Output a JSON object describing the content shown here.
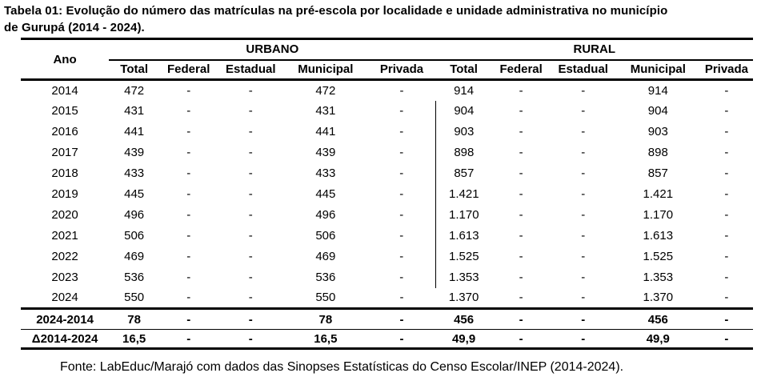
{
  "title_lines": [
    "Tabela 01: Evolução do número das matrículas na pré-escola por localidade e unidade administrativa no município",
    "de Gurupá (2014 - 2024)."
  ],
  "colors": {
    "text": "#000000",
    "background": "#ffffff",
    "border": "#000000"
  },
  "table": {
    "year_header": "Ano",
    "groups": [
      {
        "label": "URBANO",
        "columns": [
          "Total",
          "Federal",
          "Estadual",
          "Municipal",
          "Privada"
        ]
      },
      {
        "label": "RURAL",
        "columns": [
          "Total",
          "Federal",
          "Estadual",
          "Municipal",
          "Privada"
        ]
      }
    ],
    "rows": [
      {
        "ano": "2014",
        "urbano": [
          "472",
          "-",
          "-",
          "472",
          "-"
        ],
        "rural": [
          "914",
          "-",
          "-",
          "914",
          "-"
        ]
      },
      {
        "ano": "2015",
        "urbano": [
          "431",
          "-",
          "-",
          "431",
          "-"
        ],
        "rural": [
          "904",
          "-",
          "-",
          "904",
          "-"
        ]
      },
      {
        "ano": "2016",
        "urbano": [
          "441",
          "-",
          "-",
          "441",
          "-"
        ],
        "rural": [
          "903",
          "-",
          "-",
          "903",
          "-"
        ]
      },
      {
        "ano": "2017",
        "urbano": [
          "439",
          "-",
          "-",
          "439",
          "-"
        ],
        "rural": [
          "898",
          "-",
          "-",
          "898",
          "-"
        ]
      },
      {
        "ano": "2018",
        "urbano": [
          "433",
          "-",
          "-",
          "433",
          "-"
        ],
        "rural": [
          "857",
          "-",
          "-",
          "857",
          "-"
        ]
      },
      {
        "ano": "2019",
        "urbano": [
          "445",
          "-",
          "-",
          "445",
          "-"
        ],
        "rural": [
          "1.421",
          "-",
          "-",
          "1.421",
          "-"
        ]
      },
      {
        "ano": "2020",
        "urbano": [
          "496",
          "-",
          "-",
          "496",
          "-"
        ],
        "rural": [
          "1.170",
          "-",
          "-",
          "1.170",
          "-"
        ]
      },
      {
        "ano": "2021",
        "urbano": [
          "506",
          "-",
          "-",
          "506",
          "-"
        ],
        "rural": [
          "1.613",
          "-",
          "-",
          "1.613",
          "-"
        ]
      },
      {
        "ano": "2022",
        "urbano": [
          "469",
          "-",
          "-",
          "469",
          "-"
        ],
        "rural": [
          "1.525",
          "-",
          "-",
          "1.525",
          "-"
        ]
      },
      {
        "ano": "2023",
        "urbano": [
          "536",
          "-",
          "-",
          "536",
          "-"
        ],
        "rural": [
          "1.353",
          "-",
          "-",
          "1.353",
          "-"
        ]
      },
      {
        "ano": "2024",
        "urbano": [
          "550",
          "-",
          "-",
          "550",
          "-"
        ],
        "rural": [
          "1.370",
          "-",
          "-",
          "1.370",
          "-"
        ]
      }
    ],
    "summary_rows": [
      {
        "ano": "2024-2014",
        "urbano": [
          "78",
          "-",
          "-",
          "78",
          "-"
        ],
        "rural": [
          "456",
          "-",
          "-",
          "456",
          "-"
        ]
      },
      {
        "ano": "Δ2014-2024",
        "urbano": [
          "16,5",
          "-",
          "-",
          "16,5",
          "-"
        ],
        "rural": [
          "49,9",
          "-",
          "-",
          "49,9",
          "-"
        ]
      }
    ]
  },
  "source": "Fonte: LabEduc/Marajó com dados das Sinopses Estatísticas do Censo Escolar/INEP (2014-2024)."
}
